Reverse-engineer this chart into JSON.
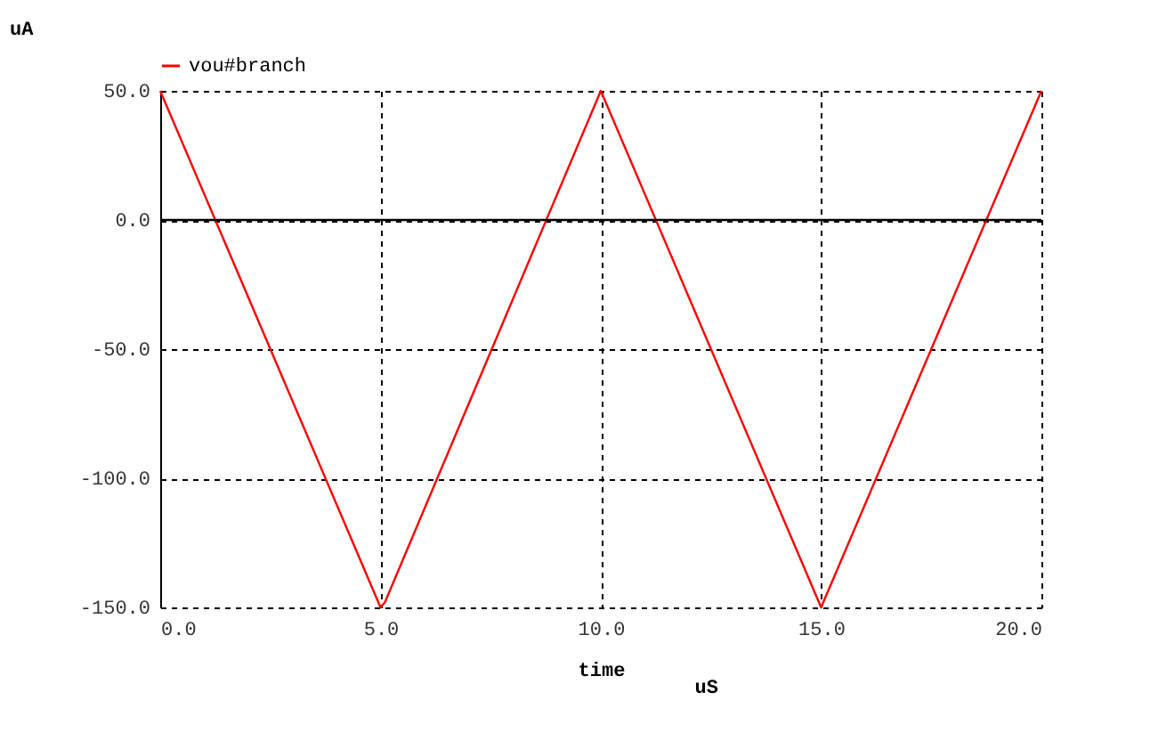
{
  "chart_data": {
    "type": "line",
    "xlabel": "time",
    "ylabel": "uA",
    "annotations": [
      "uS"
    ],
    "series": [
      {
        "name": "vou#branch",
        "color": "#ff0000",
        "x": [
          0,
          5,
          5.1,
          10,
          15,
          20
        ],
        "values": [
          50,
          -150,
          -148,
          50,
          -150,
          50
        ]
      }
    ],
    "xlim": [
      0,
      20
    ],
    "xticks": [
      {
        "value": 0,
        "label": "0.0"
      },
      {
        "value": 5,
        "label": "5.0"
      },
      {
        "value": 10,
        "label": "10.0"
      },
      {
        "value": 15,
        "label": "15.0"
      },
      {
        "value": 20,
        "label": "20.0"
      }
    ],
    "ylim": [
      -150,
      50
    ],
    "yticks": [
      {
        "value": -150,
        "label": "-150.0"
      },
      {
        "value": -100,
        "label": "-100.0"
      },
      {
        "value": -50,
        "label": "-50.0"
      },
      {
        "value": 0,
        "label": "0.0"
      },
      {
        "value": 50,
        "label": "50.0"
      }
    ],
    "ref_lines": [
      {
        "axis": "y",
        "value": 0,
        "label": null,
        "color": "#000000",
        "line_style": "solid"
      }
    ],
    "grid": true,
    "legend": "top",
    "marker": "none",
    "line_style": "solid"
  }
}
